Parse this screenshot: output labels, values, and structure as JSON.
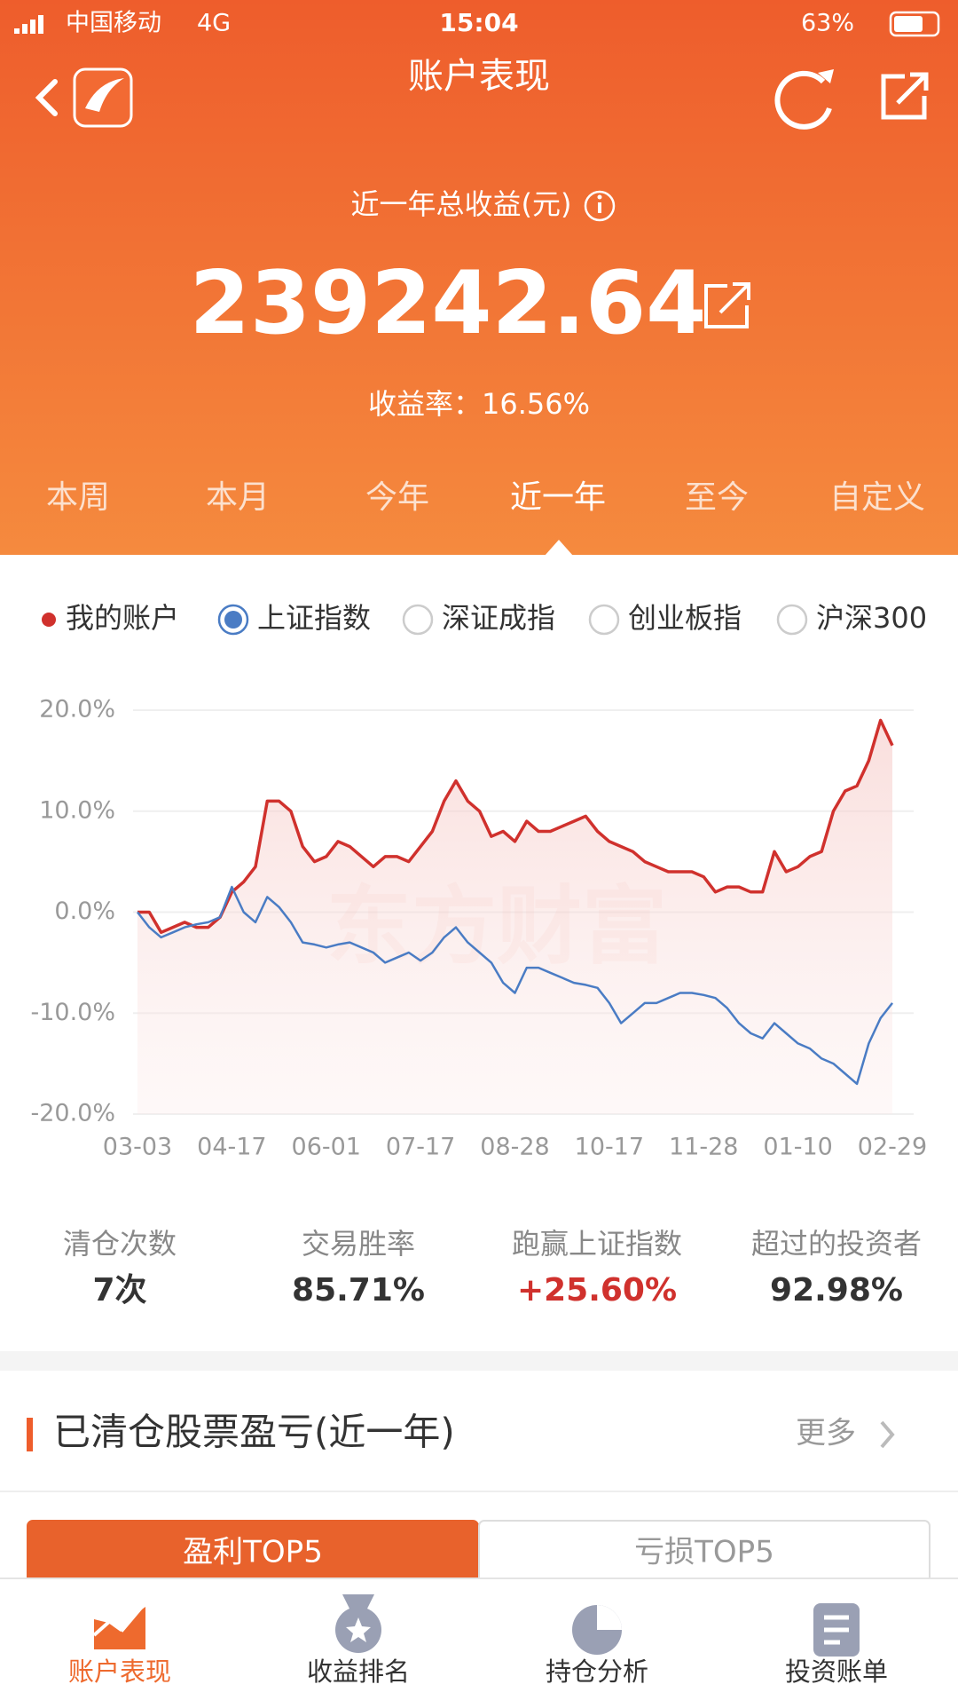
{
  "status_bar": {
    "carrier": "中国移动",
    "network": "4G",
    "time": "15:04",
    "battery": "63%"
  },
  "header": {
    "title": "账户表现",
    "label": "近一年总收益(元)",
    "amount": "239242.64",
    "rate": "收益率：16.56%",
    "tabs": [
      "本周",
      "本月",
      "今年",
      "近一年",
      "至今",
      "自定义"
    ],
    "active_tab": 3
  },
  "chart_data": {
    "type": "line",
    "watermark": "东方财富",
    "categories": [
      "03-03",
      null,
      null,
      null,
      null,
      null,
      null,
      null,
      "04-17",
      null,
      null,
      null,
      null,
      null,
      null,
      null,
      "06-01",
      null,
      null,
      null,
      null,
      null,
      null,
      null,
      "07-17",
      null,
      null,
      null,
      null,
      null,
      null,
      null,
      "08-28",
      null,
      null,
      null,
      null,
      null,
      null,
      null,
      "10-17",
      null,
      null,
      null,
      null,
      null,
      null,
      null,
      "11-28",
      null,
      null,
      null,
      null,
      null,
      null,
      null,
      "01-10",
      null,
      null,
      null,
      null,
      null,
      null,
      null,
      "02-29"
    ],
    "series": [
      {
        "name": "我的账户",
        "color": "#d0312d",
        "values": [
          0,
          0,
          -2,
          -1.5,
          -1,
          -1.5,
          -1.5,
          -0.5,
          2,
          3,
          4.5,
          11,
          11,
          10,
          6.5,
          5,
          5.5,
          7,
          6.5,
          5.5,
          4.5,
          5.5,
          5.5,
          5,
          6.5,
          8,
          11,
          13,
          11,
          10,
          7.5,
          8,
          7,
          9,
          8,
          8,
          8.5,
          9,
          9.5,
          8,
          7,
          6.5,
          6,
          5,
          4.5,
          4,
          4,
          4,
          3.5,
          2,
          2.5,
          2.5,
          2,
          2,
          6,
          4,
          4.5,
          5.5,
          6,
          10,
          12,
          12.5,
          15,
          19,
          16.5
        ]
      },
      {
        "name": "上证指数",
        "color": "#4a7cc4",
        "values": [
          0,
          -1.5,
          -2.5,
          -2,
          -1.5,
          -1.2,
          -1,
          -0.5,
          2.5,
          0,
          -1,
          1.5,
          0.5,
          -1,
          -3,
          -3.2,
          -3.5,
          -3.2,
          -3,
          -3.5,
          -4,
          -5,
          -4.5,
          -4,
          -4.8,
          -4,
          -2.5,
          -1.5,
          -3,
          -4,
          -5,
          -7,
          -8,
          -5.5,
          -5.5,
          -6,
          -6.5,
          -7,
          -7.2,
          -7.5,
          -9,
          -11,
          -10,
          -9,
          -9,
          -8.5,
          -8,
          -8,
          -8.2,
          -8.5,
          -9.5,
          -11,
          -12,
          -12.5,
          -11,
          -12,
          -13,
          -13.5,
          -14.5,
          -15,
          -16,
          -17,
          -13,
          -10.5,
          -9
        ]
      }
    ],
    "other_indices": [
      "深证成指",
      "创业板指",
      "沪深300"
    ],
    "selected_index": 1,
    "ylim": [
      -20,
      20
    ],
    "yticks": [
      {
        "value": -20,
        "label": "-20.0%"
      },
      {
        "value": -10,
        "label": "-10.0%"
      },
      {
        "value": 0,
        "label": "0.0%"
      },
      {
        "value": 10,
        "label": "10.0%"
      },
      {
        "value": 20,
        "label": "20.0%"
      }
    ],
    "grid": true
  },
  "stats": [
    {
      "label": "清仓次数",
      "value": "7次"
    },
    {
      "label": "交易胜率",
      "value": "85.71%"
    },
    {
      "label": "跑赢上证指数",
      "value": "+25.60%",
      "highlight": true
    },
    {
      "label": "超过的投资者",
      "value": "92.98%"
    }
  ],
  "section": {
    "title": "已清仓股票盈亏(近一年)",
    "more": "更多"
  },
  "ranking_tabs": [
    "盈利TOP5",
    "亏损TOP5"
  ],
  "active_ranking": 0,
  "nav": [
    "账户表现",
    "收益排名",
    "持仓分析",
    "投资账单"
  ],
  "active_nav": 0
}
